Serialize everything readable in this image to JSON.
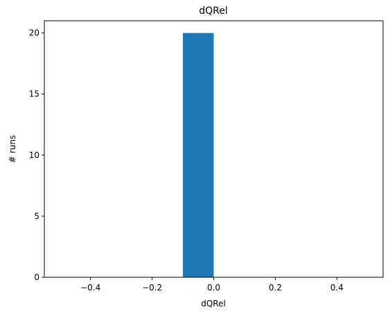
{
  "chart_data": {
    "type": "bar",
    "title": "dQRel",
    "xlabel": "dQRel",
    "ylabel": "# runs",
    "xlim": [
      -0.55,
      0.55
    ],
    "ylim": [
      0,
      21
    ],
    "x_ticks": [
      -0.4,
      -0.2,
      0.0,
      0.2,
      0.4
    ],
    "x_tick_labels": [
      "−0.4",
      "−0.2",
      "0.0",
      "0.2",
      "0.4"
    ],
    "y_ticks": [
      0,
      5,
      10,
      15,
      20
    ],
    "y_tick_labels": [
      "0",
      "5",
      "10",
      "15",
      "20"
    ],
    "bins": [
      {
        "x0": -0.1,
        "x1": 0.0,
        "count": 20
      }
    ],
    "bar_color": "#1f77b4",
    "grid": false,
    "legend": "none"
  }
}
